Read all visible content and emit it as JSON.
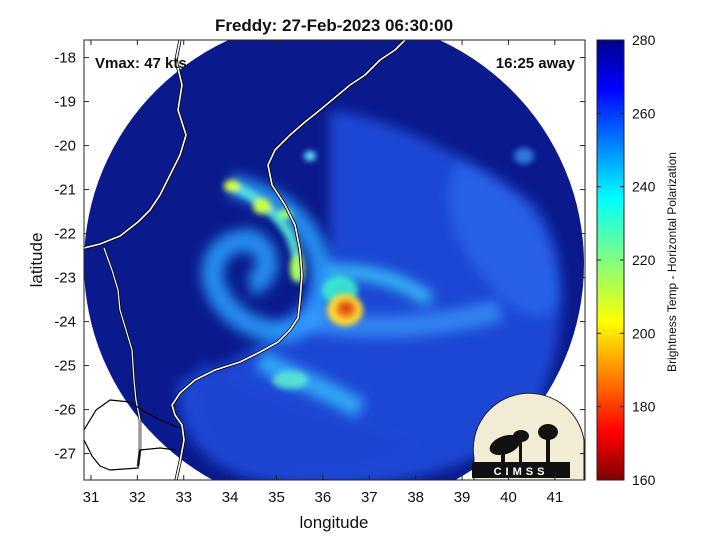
{
  "title": "Freddy: 27-Feb-2023 06:30:00",
  "vmax": "Vmax: 47 kts",
  "away": "16:25 away",
  "xlabel": "longitude",
  "ylabel": "latitude",
  "colorbar_label": "Brightness Temp - Horizontal Polarization",
  "logo_text": "CIMSS",
  "x_ticks": [
    "31",
    "32",
    "33",
    "34",
    "35",
    "36",
    "37",
    "38",
    "39",
    "40",
    "41"
  ],
  "y_ticks": [
    "-18",
    "-19",
    "-20",
    "-21",
    "-22",
    "-23",
    "-24",
    "-25",
    "-26",
    "-27"
  ],
  "cb_ticks": [
    "280",
    "260",
    "240",
    "220",
    "200",
    "180",
    "160"
  ],
  "colors": {
    "cold_background": "#0a1a8c",
    "warm_core": "#e03a10",
    "colormap": "jet"
  },
  "chart_data": {
    "type": "heatmap",
    "title": "Freddy: 27-Feb-2023 06:30:00",
    "xlabel": "longitude",
    "ylabel": "latitude",
    "xlim": [
      30.85,
      41.65
    ],
    "ylim": [
      -27.6,
      -17.6
    ],
    "clim": [
      160,
      280
    ],
    "colorbar_label": "Brightness Temp - Horizontal Polarization",
    "storm_center": {
      "lon": 36.45,
      "lat": -23.85
    },
    "min_brightness_temp": 188,
    "background_temp": 272
  }
}
